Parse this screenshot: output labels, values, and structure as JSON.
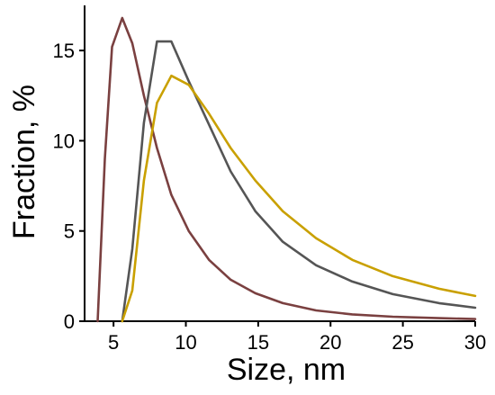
{
  "chart_data": {
    "type": "line",
    "title": "",
    "xlabel": "Size, nm",
    "ylabel": "Fraction, %",
    "xlim": [
      3,
      30
    ],
    "ylim": [
      0,
      17.5
    ],
    "xticks": [
      5,
      10,
      15,
      20,
      25,
      30
    ],
    "yticks": [
      0,
      5,
      10,
      15
    ],
    "grid": false,
    "legend": "none",
    "series": [
      {
        "color": "#7a4040",
        "x": [
          3.9,
          4.4,
          4.9,
          5.6,
          6.3,
          7.1,
          8.0,
          9.0,
          10.2,
          11.6,
          13.1,
          14.8,
          16.7,
          19.0,
          21.5,
          24.3,
          27.5,
          30.0
        ],
        "y": [
          0.0,
          9.0,
          15.2,
          16.8,
          15.4,
          12.5,
          9.6,
          7.0,
          5.0,
          3.4,
          2.3,
          1.55,
          1.0,
          0.6,
          0.38,
          0.25,
          0.17,
          0.12
        ]
      },
      {
        "color": "#555555",
        "x": [
          5.6,
          6.3,
          7.1,
          8.0,
          9.0,
          10.2,
          11.6,
          13.1,
          14.8,
          16.7,
          19.0,
          21.5,
          24.3,
          27.5,
          30.0
        ],
        "y": [
          0.0,
          4.0,
          11.0,
          15.5,
          15.5,
          13.3,
          10.9,
          8.3,
          6.1,
          4.4,
          3.1,
          2.2,
          1.5,
          1.0,
          0.75
        ]
      },
      {
        "color": "#c9a000",
        "x": [
          5.6,
          6.3,
          7.1,
          8.0,
          9.0,
          10.2,
          11.6,
          13.1,
          14.8,
          16.7,
          19.0,
          21.5,
          24.3,
          27.5,
          30.0
        ],
        "y": [
          0.0,
          1.7,
          7.8,
          12.1,
          13.6,
          13.1,
          11.5,
          9.6,
          7.8,
          6.1,
          4.6,
          3.4,
          2.5,
          1.8,
          1.4
        ]
      }
    ]
  }
}
